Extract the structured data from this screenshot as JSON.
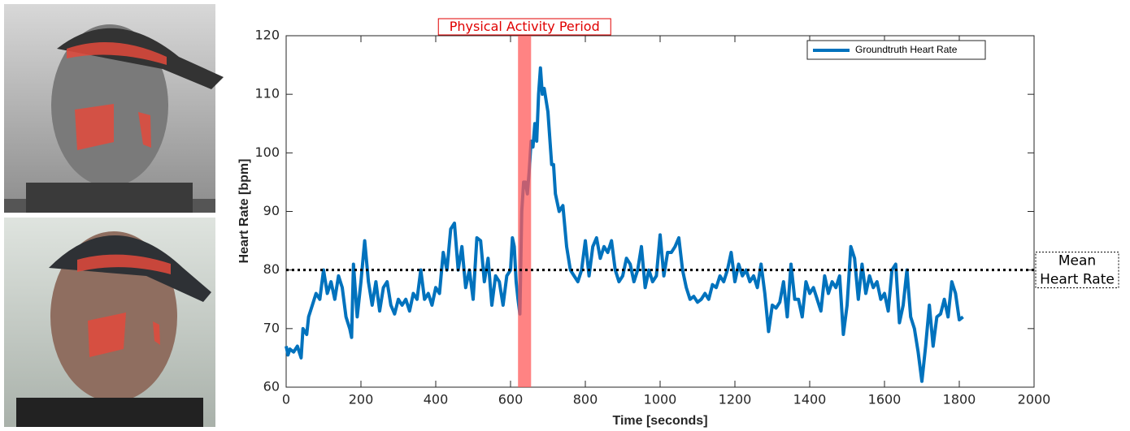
{
  "chart_data": {
    "type": "line",
    "xlabel": "Time [seconds]",
    "ylabel": "Heart Rate [bpm]",
    "x": [
      0,
      5,
      10,
      20,
      30,
      40,
      45,
      55,
      60,
      70,
      80,
      90,
      100,
      110,
      120,
      130,
      140,
      150,
      160,
      170,
      175,
      180,
      190,
      200,
      210,
      220,
      230,
      240,
      250,
      260,
      270,
      280,
      290,
      300,
      310,
      320,
      330,
      340,
      350,
      360,
      370,
      380,
      390,
      400,
      410,
      420,
      430,
      440,
      450,
      460,
      470,
      480,
      490,
      500,
      510,
      520,
      530,
      540,
      550,
      560,
      570,
      580,
      590,
      600,
      605,
      610,
      615,
      620,
      625,
      630,
      635,
      640,
      645,
      650,
      655,
      660,
      665,
      670,
      675,
      680,
      685,
      690,
      700,
      710,
      715,
      720,
      730,
      740,
      750,
      760,
      770,
      780,
      790,
      800,
      810,
      820,
      830,
      840,
      850,
      860,
      870,
      880,
      890,
      900,
      910,
      920,
      930,
      940,
      950,
      960,
      970,
      980,
      990,
      1000,
      1010,
      1020,
      1030,
      1040,
      1050,
      1060,
      1070,
      1080,
      1090,
      1100,
      1110,
      1120,
      1130,
      1140,
      1150,
      1160,
      1170,
      1180,
      1190,
      1200,
      1210,
      1220,
      1230,
      1240,
      1250,
      1260,
      1270,
      1280,
      1290,
      1300,
      1310,
      1320,
      1330,
      1340,
      1350,
      1360,
      1370,
      1380,
      1390,
      1400,
      1410,
      1420,
      1430,
      1440,
      1450,
      1460,
      1470,
      1480,
      1490,
      1500,
      1510,
      1520,
      1530,
      1540,
      1550,
      1560,
      1570,
      1580,
      1590,
      1600,
      1610,
      1620,
      1630,
      1640,
      1650,
      1660,
      1670,
      1680,
      1690,
      1700,
      1710,
      1720,
      1730,
      1740,
      1750,
      1760,
      1770,
      1780,
      1790,
      1800,
      1810
    ],
    "series": [
      {
        "name": "Groundtruth Heart Rate",
        "color": "#0072bd",
        "values": [
          67,
          65.5,
          66.5,
          66,
          67,
          65,
          70,
          69,
          72,
          74,
          76,
          75,
          80,
          76,
          78,
          75,
          79,
          77,
          72,
          70,
          68.5,
          81,
          72,
          78,
          85,
          78,
          74,
          78,
          73,
          77,
          78,
          74,
          72.5,
          75,
          74,
          75,
          73,
          76,
          75,
          80,
          75,
          76,
          74,
          77,
          76,
          83,
          80,
          87,
          88,
          80,
          84,
          77,
          80,
          75,
          85.5,
          85,
          78,
          82,
          74,
          79,
          78,
          74,
          79,
          80,
          85.5,
          84,
          78,
          75,
          72.5,
          90,
          95,
          95,
          93,
          97,
          102,
          101,
          105,
          102,
          110,
          114.5,
          110,
          111,
          107,
          98,
          98,
          93,
          90,
          91,
          84,
          80,
          79,
          78,
          80,
          85,
          79,
          84,
          85.5,
          82,
          84,
          83,
          85,
          80,
          78,
          79,
          82,
          81,
          78,
          80,
          84,
          77,
          80,
          78,
          79,
          86,
          79,
          83,
          83,
          84,
          85.5,
          80,
          77,
          75,
          75.5,
          74.5,
          75,
          76,
          75,
          77.5,
          77,
          79,
          78,
          80,
          83,
          78,
          81,
          79,
          80,
          78,
          79,
          77,
          81,
          76,
          69.5,
          74,
          73.5,
          74.5,
          78,
          72,
          81,
          75,
          75,
          72,
          78,
          76,
          77,
          75,
          73,
          79,
          76,
          78,
          77,
          79,
          69,
          74,
          84,
          82,
          75,
          81,
          76,
          79,
          77,
          78,
          75,
          76,
          73,
          80,
          81,
          71,
          74,
          80,
          72,
          70,
          66,
          61,
          67,
          74,
          67,
          72,
          72.5,
          75,
          72,
          78,
          76,
          71.5,
          72
        ]
      }
    ],
    "xlim": [
      0,
      2000
    ],
    "ylim": [
      60,
      120
    ],
    "xticks": [
      0,
      200,
      400,
      600,
      800,
      1000,
      1200,
      1400,
      1600,
      1800,
      2000
    ],
    "yticks": [
      60,
      70,
      80,
      90,
      100,
      110,
      120
    ],
    "hline": {
      "value": 80,
      "label": [
        "Mean",
        "Heart Rate"
      ]
    },
    "span": {
      "x": [
        620,
        655
      ],
      "label": "Physical Activity Period",
      "color": "#ff5a5a"
    },
    "legend": "upper right"
  }
}
